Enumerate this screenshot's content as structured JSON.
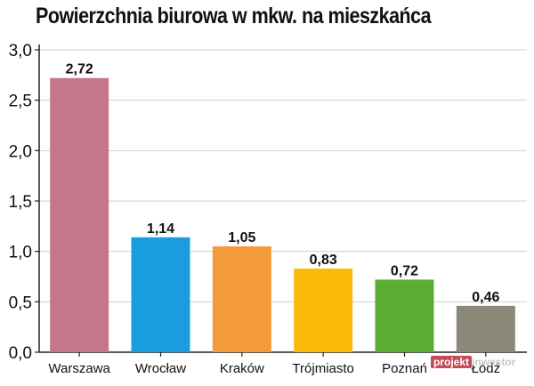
{
  "chart_data": {
    "type": "bar",
    "title": "Powierzchnia biurowa w mkw. na mieszkańca",
    "categories": [
      "Warszawa",
      "Wrocław",
      "Kraków",
      "Trójmiasto",
      "Poznań",
      "Łódź"
    ],
    "values": [
      2.72,
      1.14,
      1.05,
      0.83,
      0.72,
      0.46
    ],
    "value_labels": [
      "2,72",
      "1,14",
      "1,05",
      "0,83",
      "0,72",
      "0,46"
    ],
    "bar_colors": [
      "#c6768a",
      "#1a9de0",
      "#f39a3a",
      "#fbbb0a",
      "#5aad32",
      "#8c887a"
    ],
    "ylim": [
      0,
      3
    ],
    "yticks": [
      0,
      0.5,
      1,
      1.5,
      2,
      2.5,
      3
    ],
    "ytick_labels": [
      "0,0",
      "0,5",
      "1,0",
      "1,5",
      "2,0",
      "2,5",
      "3,0"
    ],
    "grid": true,
    "xlabel": "",
    "ylabel": ""
  },
  "watermark": {
    "accent": "projekt",
    "rest": "inwestor"
  }
}
